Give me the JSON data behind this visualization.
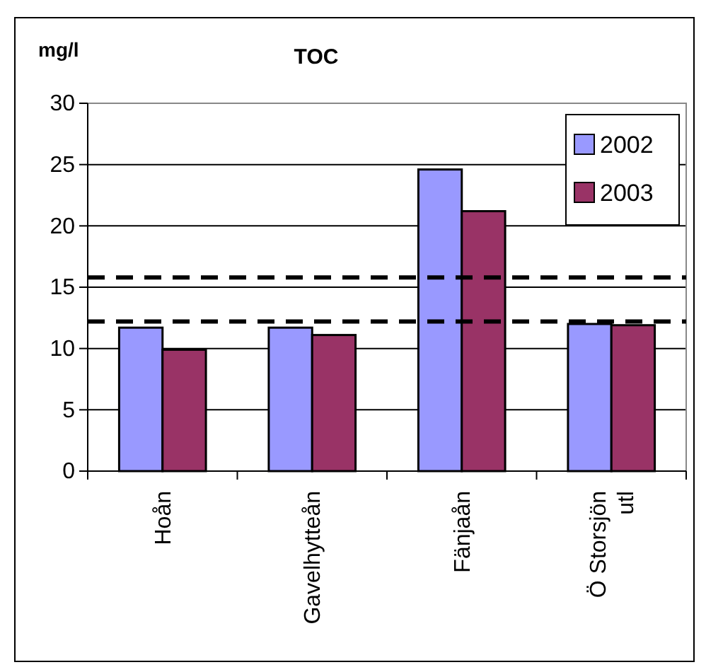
{
  "chart_data": {
    "type": "bar",
    "title": "TOC",
    "ylabel": "mg/l",
    "categories": [
      "Hoån",
      "Gavelhytteån",
      "Fänjaån",
      "Ö Storsjön utl"
    ],
    "series": [
      {
        "name": "2002",
        "color": "#9999ff",
        "values": [
          11.7,
          11.7,
          24.6,
          12.0
        ]
      },
      {
        "name": "2003",
        "color": "#993366",
        "values": [
          9.9,
          11.1,
          21.2,
          11.9
        ]
      }
    ],
    "ylim": [
      0,
      30
    ],
    "yticks": [
      0,
      5,
      10,
      15,
      20,
      25,
      30
    ],
    "grid": "y",
    "legend": "top right",
    "ref_lines": [
      {
        "axis": "y",
        "value": 15.8,
        "color": "#000000",
        "line_style": "dashed"
      },
      {
        "axis": "y",
        "value": 12.2,
        "color": "#000000",
        "line_style": "dashed"
      }
    ]
  }
}
